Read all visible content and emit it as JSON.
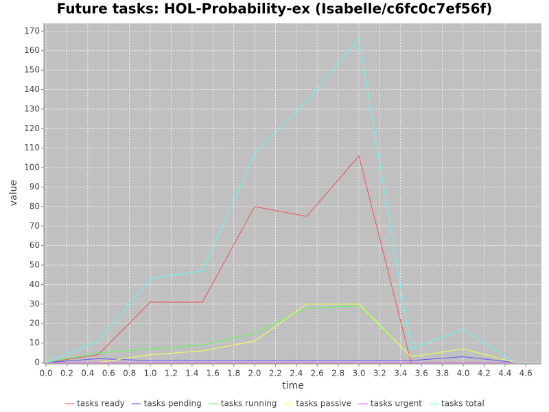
{
  "chart_data": {
    "type": "line",
    "title": "Future tasks: HOL-Probability-ex (Isabelle/c6fc0c7ef56f)",
    "x_label": "time",
    "y_label": "value",
    "x": [
      0,
      0.5,
      1.0,
      1.5,
      2.0,
      2.5,
      3.0,
      3.5,
      4.0,
      4.5
    ],
    "series": [
      {
        "name": "tasks ready",
        "color": "#f05050",
        "values": [
          0,
          4,
          31,
          31,
          80,
          75,
          106,
          0,
          0,
          0
        ]
      },
      {
        "name": "tasks pending",
        "color": "#5555ff",
        "values": [
          0,
          2,
          1,
          1,
          1,
          1,
          1,
          1,
          3,
          0
        ]
      },
      {
        "name": "tasks running",
        "color": "#55ff55",
        "values": [
          0,
          5,
          7,
          9,
          15,
          28,
          29,
          3,
          7,
          0
        ]
      },
      {
        "name": "tasks passive",
        "color": "#ffff55",
        "values": [
          0,
          0,
          4,
          6,
          11,
          30,
          30,
          3,
          7,
          0
        ]
      },
      {
        "name": "tasks urgent",
        "color": "#ff55ff",
        "values": [
          0,
          0,
          0,
          0,
          0,
          0,
          0,
          0,
          0,
          0
        ]
      },
      {
        "name": "tasks total",
        "color": "#55ffff",
        "values": [
          0,
          11,
          43,
          47,
          107,
          134,
          166,
          7,
          17,
          0
        ]
      }
    ],
    "xlim": [
      -0.02,
      4.75
    ],
    "ylim": [
      -0.7,
      174
    ],
    "xticks": [
      {
        "value": 0,
        "label": "0.0"
      },
      0.2,
      0.4,
      0.6,
      0.8,
      {
        "value": 1,
        "label": "1.0"
      },
      1.2,
      1.4,
      1.6,
      1.8,
      {
        "value": 2,
        "label": "2.0"
      },
      2.2,
      2.4,
      2.6,
      2.8,
      {
        "value": 3,
        "label": "3.0"
      },
      3.2,
      3.4,
      3.6,
      3.8,
      {
        "value": 4,
        "label": "4.0"
      },
      4.2,
      4.4,
      4.6
    ],
    "yticks": [
      0,
      10,
      20,
      30,
      40,
      50,
      60,
      70,
      80,
      90,
      100,
      110,
      120,
      130,
      140,
      150,
      160,
      170
    ],
    "grid": true,
    "legend": "bottom"
  }
}
